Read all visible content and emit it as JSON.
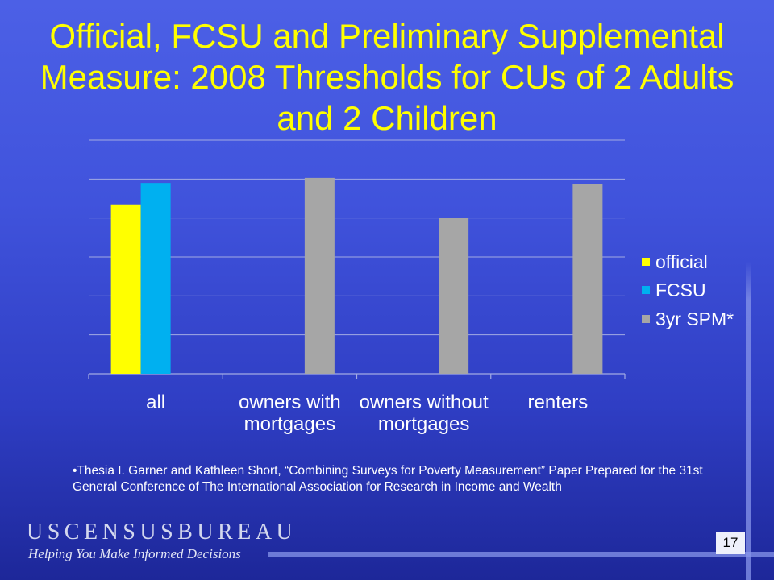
{
  "slide": {
    "title": "Official, FCSU and Preliminary Supplemental Measure: 2008 Thresholds for CUs of 2 Adults and 2 Children",
    "footnote": "•Thesia I. Garner and Kathleen Short, “Combining Surveys for Poverty Measurement” Paper Prepared for the 31st General Conference of The International Association for Research in Income and Wealth",
    "page_number": "17"
  },
  "logo": {
    "wordmark": "USCENSUSBUREAU",
    "tagline": "Helping You Make Informed Decisions"
  },
  "colors": {
    "title": "#ffff00",
    "text": "#ffffff",
    "gridline": "#a3abe3",
    "footer_bar": "#8795ea"
  },
  "chart_data": {
    "type": "bar",
    "categories": [
      "all",
      "owners with mortgages",
      "owners without mortgages",
      "renters"
    ],
    "series": [
      {
        "name": "official",
        "color": "#ffff00",
        "values": [
          4.35,
          null,
          null,
          null
        ]
      },
      {
        "name": "FCSU",
        "color": "#00b0f0",
        "values": [
          4.9,
          null,
          null,
          null
        ]
      },
      {
        "name": "3yr SPM*",
        "color": "#a6a6a6",
        "values": [
          null,
          5.03,
          4.01,
          4.88
        ]
      }
    ],
    "ylim": [
      0,
      6
    ],
    "ytick_step": 1,
    "xlabel": "",
    "ylabel": "",
    "grid": true,
    "legend": "right"
  }
}
